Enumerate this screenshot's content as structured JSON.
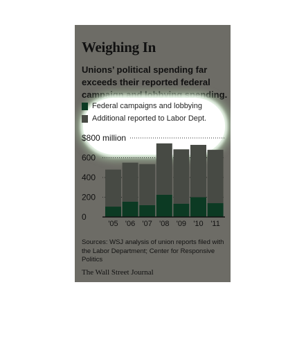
{
  "title": "Weighing In",
  "subtitle": "Unions’ political spending far exceeds their reported federal campaign and lobbying spending.",
  "legend": [
    {
      "label": "Federal campaigns and lobbying",
      "color": "#0c3a23"
    },
    {
      "label": "Additional reported to Labor Dept.",
      "color": "#474a44"
    }
  ],
  "sources": "Sources: WSJ analysis of union reports filed with the Labor Department; Center for Responsive Politics",
  "brand": "The Wall Street Journal",
  "colors": {
    "background": "#6d6c66",
    "bar_federal": "#0c3a23",
    "bar_additional": "#474a44"
  },
  "chart_data": {
    "type": "bar",
    "stacked": true,
    "categories": [
      "'05",
      "'06",
      "'07",
      "'08",
      "'09",
      "'10",
      "'11"
    ],
    "series": [
      {
        "name": "Federal campaigns and lobbying",
        "values": [
          105,
          155,
          120,
          225,
          135,
          200,
          140
        ]
      },
      {
        "name": "Additional reported to Labor Dept.",
        "values": [
          375,
          395,
          415,
          520,
          550,
          530,
          540
        ]
      }
    ],
    "ylim": [
      0,
      800
    ],
    "yticks": [
      0,
      200,
      400,
      600,
      800
    ],
    "ytick_labels": [
      "0",
      "200",
      "400",
      "600",
      "$800 million"
    ],
    "xlabel": "",
    "ylabel": "",
    "grid": true
  }
}
